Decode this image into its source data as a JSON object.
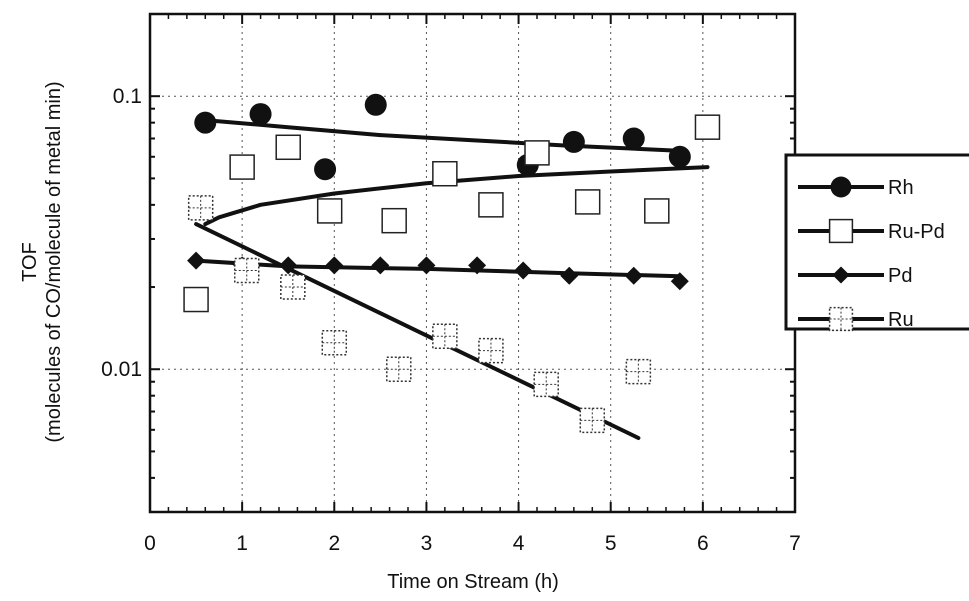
{
  "chart_data": {
    "type": "scatter",
    "title": "",
    "xlabel": "Time on Stream (h)",
    "ylabel_line1": "TOF",
    "ylabel_line2": "(molecules of CO/molecule of metal min)",
    "xlim": [
      0,
      7
    ],
    "ylim": [
      0.003,
      0.2
    ],
    "yscale": "log",
    "x_ticks": [
      "0",
      "1",
      "2",
      "3",
      "4",
      "5",
      "6",
      "7"
    ],
    "y_ticks": [
      {
        "value": 0.1,
        "label": "0.1"
      },
      {
        "value": 0.01,
        "label": "0.01"
      }
    ],
    "grid": "dotted",
    "legend_placement": "right",
    "series": [
      {
        "name": "Rh",
        "marker": "filled-circle",
        "points": [
          [
            0.6,
            0.08
          ],
          [
            1.2,
            0.086
          ],
          [
            1.9,
            0.054
          ],
          [
            2.45,
            0.093
          ],
          [
            4.1,
            0.056
          ],
          [
            4.6,
            0.068
          ],
          [
            5.25,
            0.07
          ],
          [
            5.75,
            0.06
          ]
        ],
        "fit": [
          [
            0.55,
            0.082
          ],
          [
            1.5,
            0.077
          ],
          [
            2.5,
            0.072
          ],
          [
            3.5,
            0.069
          ],
          [
            4.5,
            0.066
          ],
          [
            5.8,
            0.063
          ]
        ]
      },
      {
        "name": "Ru-Pd",
        "marker": "open-square",
        "points": [
          [
            0.5,
            0.018
          ],
          [
            1.0,
            0.055
          ],
          [
            1.5,
            0.065
          ],
          [
            1.95,
            0.038
          ],
          [
            2.65,
            0.035
          ],
          [
            3.2,
            0.052
          ],
          [
            3.7,
            0.04
          ],
          [
            4.2,
            0.062
          ],
          [
            4.75,
            0.041
          ],
          [
            5.5,
            0.038
          ],
          [
            6.05,
            0.077
          ]
        ],
        "fit": [
          [
            6.05,
            0.055
          ],
          [
            5.0,
            0.053
          ],
          [
            4.0,
            0.051
          ],
          [
            3.0,
            0.048
          ],
          [
            2.0,
            0.044
          ],
          [
            1.2,
            0.04
          ],
          [
            0.75,
            0.036
          ],
          [
            0.6,
            0.034
          ]
        ]
      },
      {
        "name": "Pd",
        "marker": "filled-diamond",
        "points": [
          [
            0.5,
            0.025
          ],
          [
            1.0,
            0.024
          ],
          [
            1.5,
            0.024
          ],
          [
            2.0,
            0.024
          ],
          [
            2.5,
            0.024
          ],
          [
            3.0,
            0.024
          ],
          [
            3.55,
            0.024
          ],
          [
            4.05,
            0.023
          ],
          [
            4.55,
            0.022
          ],
          [
            5.25,
            0.022
          ],
          [
            5.75,
            0.021
          ]
        ],
        "fit": [
          [
            0.5,
            0.025
          ],
          [
            1.5,
            0.0238
          ],
          [
            3.0,
            0.0233
          ],
          [
            4.5,
            0.0225
          ],
          [
            5.75,
            0.0219
          ]
        ]
      },
      {
        "name": "Ru",
        "marker": "dotted-square-cross",
        "points": [
          [
            0.55,
            0.039
          ],
          [
            1.05,
            0.023
          ],
          [
            1.55,
            0.02
          ],
          [
            2.0,
            0.0125
          ],
          [
            2.7,
            0.01
          ],
          [
            3.2,
            0.0132
          ],
          [
            3.7,
            0.0117
          ],
          [
            4.3,
            0.0088
          ],
          [
            4.8,
            0.0065
          ],
          [
            5.3,
            0.0098
          ]
        ],
        "fit": [
          [
            0.5,
            0.034
          ],
          [
            5.3,
            0.0056
          ]
        ]
      }
    ]
  }
}
